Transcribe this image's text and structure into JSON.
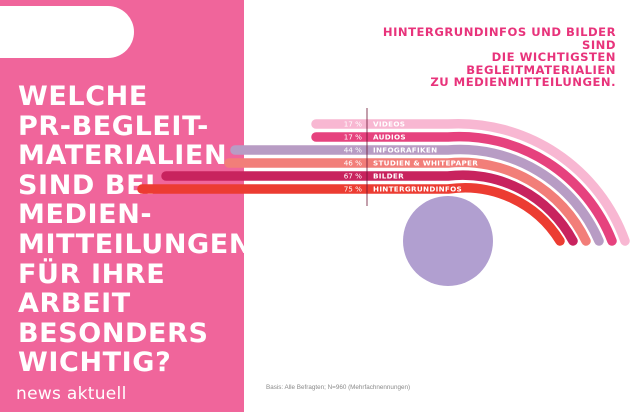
{
  "question": "WELCHE\nPR-BEGLEIT-\nMATERIALIEN\nSIND BEI\nMEDIEN-\nMITTEILUNGEN\nFÜR IHRE\nARBEIT\nBESONDERS\nWICHTIG?",
  "brand": "news aktuell",
  "footnote": "Basis: Alle Befragten; N=960 (Mehrfachnennungen)",
  "colors": {
    "panel": "#f0659b",
    "accent": "#e8337b",
    "center_circle": "#b19fd0",
    "divider": "#6a1030"
  },
  "chart_data": {
    "type": "bar",
    "title": "HINTERGRUNDINFOS UND BILDER SIND\nDIE WICHTIGSTEN BEGLEITMATERIALIEN\nZU MEDIENMITTEILUNGEN.",
    "unit": "%",
    "series": [
      {
        "category": "VIDEOS",
        "value": 17,
        "label": "17 %",
        "color": "#f8b7d2"
      },
      {
        "category": "AUDIOS",
        "value": 17,
        "label": "17 %",
        "color": "#e6427e"
      },
      {
        "category": "INFOGRAFIKEN",
        "value": 44,
        "label": "44 %",
        "color": "#b89cc4"
      },
      {
        "category": "STUDIEN & WHITEPAPER",
        "value": 46,
        "label": "46 %",
        "color": "#f27e79"
      },
      {
        "category": "BILDER",
        "value": 67,
        "label": "67 %",
        "color": "#c8235e"
      },
      {
        "category": "HINTERGRUNDINFOS",
        "value": 75,
        "label": "75 %",
        "color": "#ec3c32"
      }
    ]
  }
}
